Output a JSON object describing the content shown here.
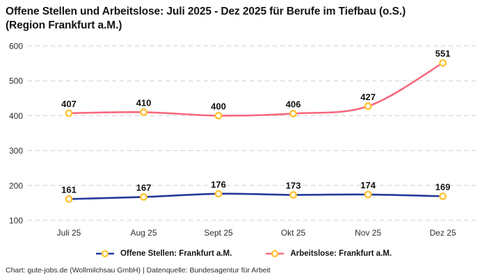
{
  "title": {
    "line1": "Offene Stellen und Arbeitslose: Juli 2025 - Dez 2025 für Berufe im Tiefbau (o.S.)",
    "line2": "(Region Frankfurt a.M.)"
  },
  "footer": {
    "text": "Chart: gute-jobs.de (Wollmilchsau GmbH) | Datenquelle: Bundesagentur für Arbeit"
  },
  "chart_data": {
    "type": "line",
    "title": "Offene Stellen und Arbeitslose: Juli 2025 - Dez 2025 für Berufe im Tiefbau (o.S.) (Region Frankfurt a.M.)",
    "categories": [
      "Juli 25",
      "Aug 25",
      "Sept 25",
      "Okt 25",
      "Nov 25",
      "Dez 25"
    ],
    "series": [
      {
        "name": "Offene Stellen: Frankfurt a.M.",
        "values": [
          161,
          167,
          176,
          173,
          174,
          169
        ],
        "color": "#23389b"
      },
      {
        "name": "Arbeitslose: Frankfurt a.M.",
        "values": [
          407,
          410,
          400,
          406,
          427,
          551
        ],
        "color": "#f8677e"
      }
    ],
    "marker": {
      "fill": "#ffffff",
      "stroke": "#ffc332"
    },
    "ylim": [
      100,
      600
    ],
    "yticks": [
      100,
      200,
      300,
      400,
      500,
      600
    ],
    "grid": "horizontal-dashed",
    "gridline_color": "#cdcdcd",
    "legend_position": "bottom",
    "data_labels": true,
    "interpolation": "smooth"
  }
}
